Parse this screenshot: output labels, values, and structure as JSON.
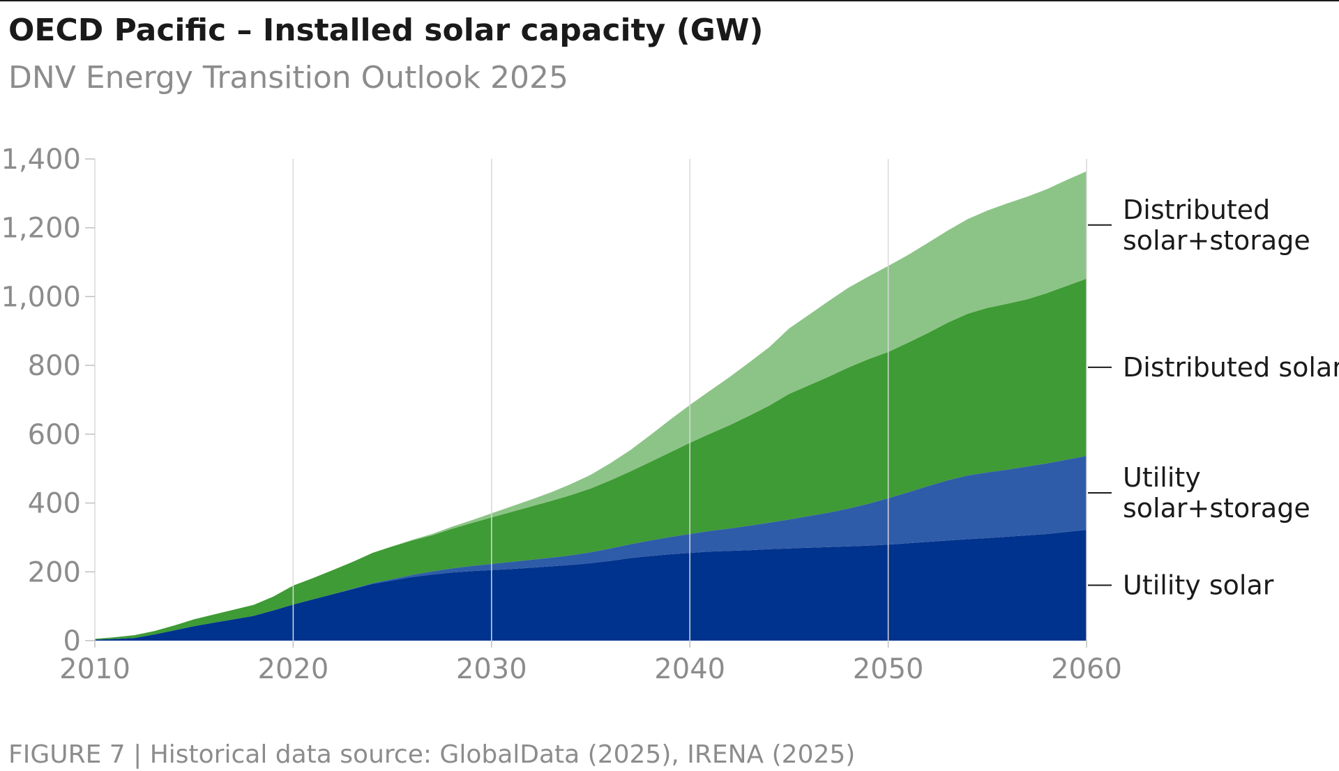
{
  "header": {
    "title": "OECD Pacific – Installed solar capacity (GW)",
    "subtitle": "DNV Energy Transition Outlook 2025"
  },
  "footer": {
    "caption": "FIGURE 7 | Historical data source: GlobalData (2025), IRENA (2025)"
  },
  "colors": {
    "utility_solar": "#00338d",
    "utility_solar_storage": "#2f5ca8",
    "distributed_solar": "#3f9b35",
    "distributed_solar_storage": "#8cc487",
    "grid": "#d9d9d9",
    "axis_text": "#8c8c8c",
    "label_text": "#1a1a1a"
  },
  "chart_data": {
    "type": "area",
    "stacked": true,
    "title": "OECD Pacific – Installed solar capacity (GW)",
    "subtitle": "DNV Energy Transition Outlook 2025",
    "xlabel": "",
    "ylabel": "",
    "xlim": [
      2010,
      2060
    ],
    "ylim": [
      0,
      1400
    ],
    "x_ticks": [
      2010,
      2020,
      2030,
      2040,
      2050,
      2060
    ],
    "y_ticks": [
      0,
      200,
      400,
      600,
      800,
      1000,
      1200,
      1400
    ],
    "x_tick_labels": [
      "2010",
      "2020",
      "2030",
      "2040",
      "2050",
      "2060"
    ],
    "y_tick_labels": [
      "0",
      "200",
      "400",
      "600",
      "800",
      "1,000",
      "1,200",
      "1,400"
    ],
    "grid": "vertical",
    "legend": "right-end labels",
    "x": [
      2010,
      2011,
      2012,
      2013,
      2014,
      2015,
      2016,
      2017,
      2018,
      2019,
      2020,
      2021,
      2022,
      2023,
      2024,
      2025,
      2026,
      2027,
      2028,
      2029,
      2030,
      2031,
      2032,
      2033,
      2034,
      2035,
      2036,
      2037,
      2038,
      2039,
      2040,
      2041,
      2042,
      2043,
      2044,
      2045,
      2046,
      2047,
      2048,
      2049,
      2050,
      2051,
      2052,
      2053,
      2054,
      2055,
      2056,
      2057,
      2058,
      2059,
      2060
    ],
    "series": [
      {
        "name": "Utility solar",
        "label_lines": [
          "Utility solar"
        ],
        "color_key": "utility_solar",
        "values": [
          3,
          5,
          8,
          18,
          30,
          42,
          52,
          62,
          72,
          88,
          105,
          120,
          135,
          150,
          165,
          175,
          185,
          192,
          198,
          202,
          205,
          208,
          212,
          216,
          220,
          225,
          232,
          240,
          246,
          251,
          255,
          259,
          261,
          263,
          266,
          268,
          270,
          272,
          274,
          276,
          279,
          283,
          287,
          291,
          295,
          298,
          302,
          306,
          310,
          316,
          322
        ]
      },
      {
        "name": "Utility solar+storage",
        "label_lines": [
          "Utility",
          "solar+storage"
        ],
        "color_key": "utility_solar_storage",
        "values": [
          0,
          0,
          0,
          0,
          0,
          0,
          0,
          0,
          0,
          0,
          0,
          0,
          0,
          1,
          2,
          4,
          6,
          9,
          12,
          15,
          18,
          21,
          23,
          25,
          28,
          32,
          36,
          40,
          45,
          50,
          55,
          60,
          65,
          71,
          77,
          84,
          92,
          100,
          110,
          122,
          135,
          148,
          162,
          175,
          185,
          191,
          195,
          200,
          205,
          210,
          215
        ]
      },
      {
        "name": "Distributed solar",
        "label_lines": [
          "Distributed solar"
        ],
        "color_key": "distributed_solar",
        "values": [
          2,
          5,
          8,
          10,
          14,
          20,
          24,
          28,
          32,
          40,
          55,
          62,
          70,
          78,
          88,
          95,
          100,
          105,
          115,
          125,
          135,
          145,
          155,
          165,
          175,
          185,
          198,
          212,
          228,
          246,
          265,
          282,
          300,
          320,
          340,
          365,
          380,
          395,
          410,
          420,
          425,
          435,
          445,
          458,
          470,
          478,
          482,
          486,
          495,
          505,
          515
        ]
      },
      {
        "name": "Distributed solar+storage",
        "label_lines": [
          "Distributed",
          "solar+storage"
        ],
        "color_key": "distributed_solar_storage",
        "values": [
          0,
          0,
          0,
          0,
          0,
          0,
          0,
          0,
          0,
          0,
          0,
          0,
          0,
          0,
          0,
          0,
          2,
          4,
          6,
          8,
          12,
          16,
          20,
          25,
          32,
          40,
          50,
          62,
          78,
          95,
          110,
          125,
          140,
          155,
          170,
          190,
          205,
          220,
          232,
          240,
          250,
          255,
          262,
          268,
          275,
          283,
          292,
          298,
          302,
          308,
          312
        ]
      }
    ]
  }
}
